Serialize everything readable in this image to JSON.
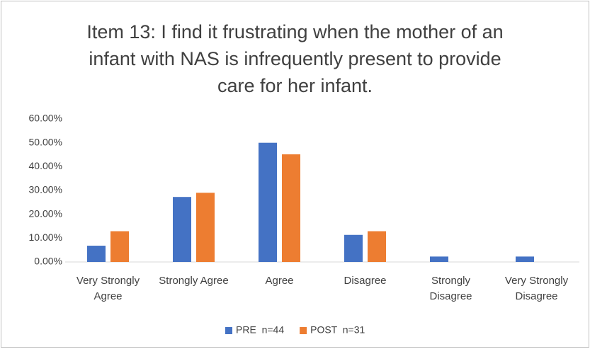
{
  "chart_data": {
    "type": "bar",
    "title": "Item 13: I find it frustrating when the mother of an infant with NAS is infrequently present to provide care for her infant.",
    "categories": [
      "Very Strongly Agree",
      "Strongly Agree",
      "Agree",
      "Disagree",
      "Strongly Disagree",
      "Very Strongly Disagree"
    ],
    "series": [
      {
        "name": "PRE  n=44",
        "color": "#4472c4",
        "values": [
          6.82,
          27.27,
          50.0,
          11.36,
          2.27,
          2.27
        ]
      },
      {
        "name": "POST  n=31",
        "color": "#ed7d31",
        "values": [
          12.9,
          29.03,
          45.16,
          12.9,
          0,
          0
        ]
      }
    ],
    "ylim": [
      0,
      60
    ],
    "yticks": [
      {
        "value": 0,
        "label": "0.00%"
      },
      {
        "value": 10,
        "label": "10.00%"
      },
      {
        "value": 20,
        "label": "20.00%"
      },
      {
        "value": 30,
        "label": "30.00%"
      },
      {
        "value": 40,
        "label": "40.00%"
      },
      {
        "value": 50,
        "label": "50.00%"
      },
      {
        "value": 60,
        "label": "60.00%"
      }
    ],
    "grid": false,
    "legend": "bottom"
  }
}
